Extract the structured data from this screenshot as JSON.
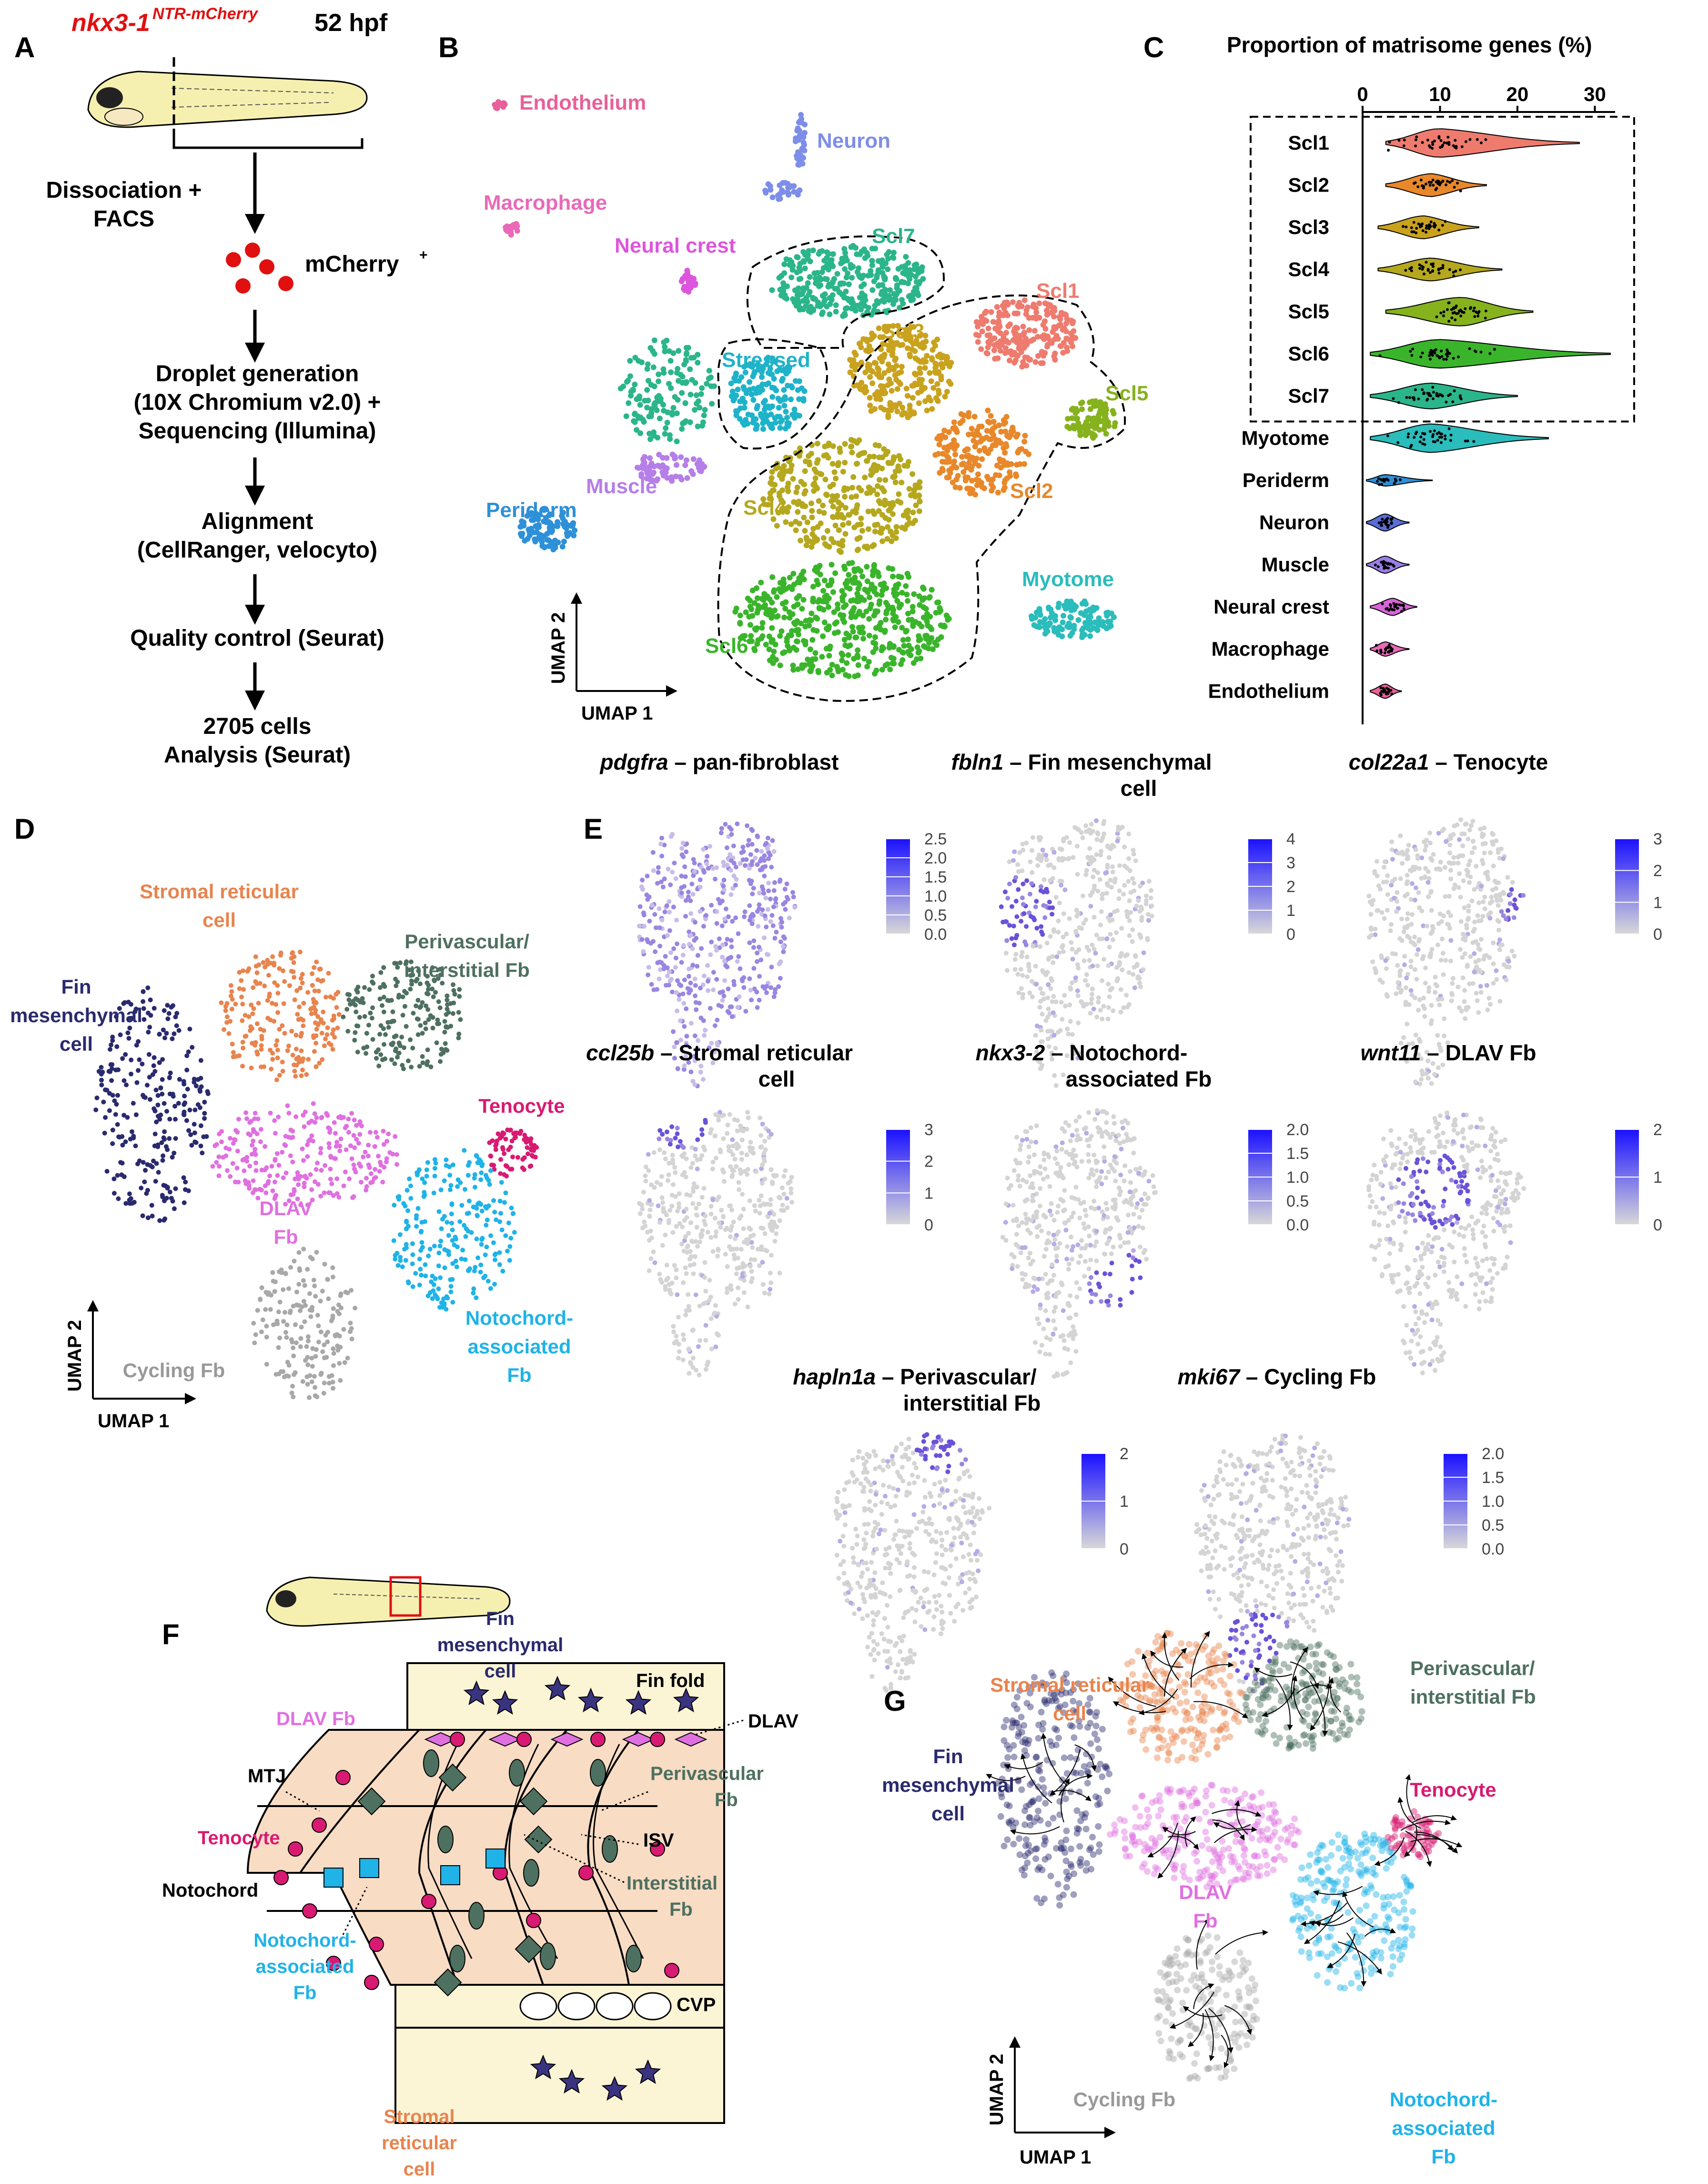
{
  "panels": {
    "A": {
      "letter": "A",
      "transgene": "nkx3-1",
      "transgene_sup": "NTR-mCherry",
      "stage": "52 hpf",
      "steps": [
        "Dissociation +",
        "FACS",
        "mCherry",
        "Droplet generation",
        "(10X Chromium v2.0) +",
        "Sequencing (Illumina)",
        "Alignment",
        "(CellRanger, velocyto)",
        "Quality control (Seurat)",
        "2705 cells",
        "Analysis (Seurat)"
      ],
      "mcherry_sup": "+"
    },
    "B": {
      "letter": "B",
      "clusters": [
        {
          "name": "Endothelium",
          "color": "#e8609a"
        },
        {
          "name": "Neuron",
          "color": "#7d8ee8"
        },
        {
          "name": "Macrophage",
          "color": "#e86ab8"
        },
        {
          "name": "Neural crest",
          "color": "#dd55dd"
        },
        {
          "name": "Scl7",
          "color": "#2bb58a"
        },
        {
          "name": "Scl1",
          "color": "#ee7b6e"
        },
        {
          "name": "Scl3",
          "color": "#c9a21e"
        },
        {
          "name": "Stressed",
          "color": "#1fb3c9"
        },
        {
          "name": "Scl5",
          "color": "#86b21e"
        },
        {
          "name": "Scl2",
          "color": "#e8882a"
        },
        {
          "name": "Muscle",
          "color": "#b57ee8"
        },
        {
          "name": "Periderm",
          "color": "#2e90d8"
        },
        {
          "name": "Scl4",
          "color": "#b5a81e"
        },
        {
          "name": "Myotome",
          "color": "#2bbcbc"
        },
        {
          "name": "Scl6",
          "color": "#3ab52b"
        }
      ],
      "axis_y": "UMAP 2",
      "axis_x": "UMAP 1"
    },
    "C": {
      "letter": "C",
      "title": "Proportion of matrisome genes (%)",
      "ticks": [
        "0",
        "10",
        "20",
        "30"
      ]
    },
    "D": {
      "letter": "D",
      "labels": {
        "stromal": [
          "Stromal reticular",
          "cell"
        ],
        "perivascular": [
          "Perivascular/",
          "interstitial Fb"
        ],
        "fin": [
          "Fin",
          "mesenchymal",
          "cell"
        ],
        "tenocyte": "Tenocyte",
        "dlav": [
          "DLAV",
          "Fb"
        ],
        "cycling": "Cycling Fb",
        "notochord": [
          "Notochord-",
          "associated",
          "Fb"
        ]
      },
      "axis_y": "UMAP 2",
      "axis_x": "UMAP 1"
    },
    "E": {
      "letter": "E",
      "plots": [
        {
          "gene": "pdgfra",
          "title": [
            "– pan-fibroblast"
          ],
          "ticks": [
            "2.5",
            "2.0",
            "1.5",
            "1.0",
            "0.5",
            "0.0"
          ]
        },
        {
          "gene": "fbln1",
          "title": [
            "– Fin mesenchymal",
            "cell"
          ],
          "ticks": [
            "4",
            "3",
            "2",
            "1",
            "0"
          ]
        },
        {
          "gene": "col22a1",
          "title": [
            "– Tenocyte"
          ],
          "ticks": [
            "3",
            "2",
            "1",
            "0"
          ]
        },
        {
          "gene": "ccl25b",
          "title": [
            "– Stromal reticular",
            "cell"
          ],
          "ticks": [
            "3",
            "2",
            "1",
            "0"
          ]
        },
        {
          "gene": "nkx3-2",
          "title": [
            "– Notochord-",
            "associated Fb"
          ],
          "ticks": [
            "2.0",
            "1.5",
            "1.0",
            "0.5",
            "0.0"
          ]
        },
        {
          "gene": "wnt11",
          "title": [
            "– DLAV Fb"
          ],
          "ticks": [
            "2",
            "1",
            "0"
          ]
        },
        {
          "gene": "hapln1a",
          "title": [
            "– Perivascular/",
            "interstitial Fb"
          ],
          "ticks": [
            "2",
            "1",
            "0"
          ]
        },
        {
          "gene": "mki67",
          "title": [
            "– Cycling Fb"
          ],
          "ticks": [
            "2.0",
            "1.5",
            "1.0",
            "0.5",
            "0.0"
          ]
        }
      ]
    },
    "F": {
      "letter": "F",
      "labels": {
        "fin_mes": [
          "Fin",
          "mesenchymal",
          "cell"
        ],
        "fin_fold": "Fin fold",
        "dlav_fb": "DLAV Fb",
        "dlav": "DLAV",
        "mtj": "MTJ",
        "perivascular": [
          "Perivascular",
          "Fb"
        ],
        "tenocyte": "Tenocyte",
        "isv": "ISV",
        "notochord": "Notochord",
        "interstitial": [
          "Interstitial",
          "Fb"
        ],
        "notochord_fb": [
          "Notochord-",
          "associated",
          "Fb"
        ],
        "cvp": "CVP",
        "stromal": [
          "Stromal",
          "reticular",
          "cell"
        ]
      }
    },
    "G": {
      "letter": "G",
      "labels": {
        "stromal": [
          "Stromal reticular",
          "cell"
        ],
        "perivascular": [
          "Perivascular/",
          "interstitial Fb"
        ],
        "fin": [
          "Fin",
          "mesenchymal",
          "cell"
        ],
        "tenocyte": "Tenocyte",
        "dlav": [
          "DLAV",
          "Fb"
        ],
        "cycling": "Cycling Fb",
        "notochord": [
          "Notochord-",
          "associated",
          "Fb"
        ]
      },
      "axis_y": "UMAP 2",
      "axis_x": "UMAP 1"
    }
  },
  "chart_data": {
    "type": "violin",
    "title": "Proportion of matrisome genes (%)",
    "xlim": [
      0,
      32
    ],
    "x_ticks": [
      0,
      10,
      20,
      30
    ],
    "boxed_group": [
      "Scl1",
      "Scl2",
      "Scl3",
      "Scl4",
      "Scl5",
      "Scl6",
      "Scl7"
    ],
    "categories": [
      "Scl1",
      "Scl2",
      "Scl3",
      "Scl4",
      "Scl5",
      "Scl6",
      "Scl7",
      "Myotome",
      "Periderm",
      "Neuron",
      "Muscle",
      "Neural crest",
      "Macrophage",
      "Endothelium"
    ],
    "series": [
      {
        "name": "Scl1",
        "color": "#ee7b6e",
        "median": 10,
        "min": 3,
        "max": 28,
        "width": 1.0
      },
      {
        "name": "Scl2",
        "color": "#e8882a",
        "median": 9,
        "min": 3,
        "max": 16,
        "width": 0.8
      },
      {
        "name": "Scl3",
        "color": "#c9a21e",
        "median": 8,
        "min": 2,
        "max": 15,
        "width": 0.8
      },
      {
        "name": "Scl4",
        "color": "#b5a81e",
        "median": 9,
        "min": 2,
        "max": 18,
        "width": 0.8
      },
      {
        "name": "Scl5",
        "color": "#86b21e",
        "median": 13,
        "min": 3,
        "max": 22,
        "width": 1.0
      },
      {
        "name": "Scl6",
        "color": "#3ab52b",
        "median": 10,
        "min": 1,
        "max": 32,
        "width": 1.0
      },
      {
        "name": "Scl7",
        "color": "#2bb58a",
        "median": 9,
        "min": 1,
        "max": 20,
        "width": 0.9
      },
      {
        "name": "Myotome",
        "color": "#2bbcbc",
        "median": 9,
        "min": 1,
        "max": 24,
        "width": 1.0
      },
      {
        "name": "Periderm",
        "color": "#2e90d8",
        "median": 3,
        "min": 0.5,
        "max": 9,
        "width": 0.4
      },
      {
        "name": "Neuron",
        "color": "#5a6ed8",
        "median": 3,
        "min": 0.5,
        "max": 6,
        "width": 0.6
      },
      {
        "name": "Muscle",
        "color": "#9a7ee8",
        "median": 3,
        "min": 0.5,
        "max": 6,
        "width": 0.6
      },
      {
        "name": "Neural crest",
        "color": "#d866d8",
        "median": 4,
        "min": 1,
        "max": 7,
        "width": 0.6
      },
      {
        "name": "Macrophage",
        "color": "#e86ab8",
        "median": 3,
        "min": 1,
        "max": 6,
        "width": 0.5
      },
      {
        "name": "Endothelium",
        "color": "#e8609a",
        "median": 3,
        "min": 1,
        "max": 5,
        "width": 0.5
      }
    ]
  }
}
